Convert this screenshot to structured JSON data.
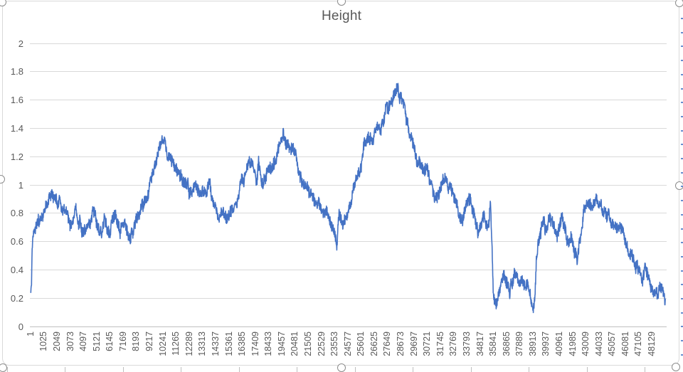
{
  "chart_data": {
    "type": "line",
    "title": "Height",
    "xlabel": "",
    "ylabel": "",
    "legend": "none",
    "grid": "horizontal",
    "ylim": [
      0,
      2
    ],
    "y_tick_step": 0.2,
    "y_tick_labels": [
      "2",
      "1.8",
      "1.6",
      "1.4",
      "1.2",
      "1",
      "0.8",
      "0.6",
      "0.4",
      "0.2",
      "0"
    ],
    "y_tick_values": [
      2,
      1.8,
      1.6,
      1.4,
      1.2,
      1,
      0.8,
      0.6,
      0.4,
      0.2,
      0
    ],
    "x_tick_labels": [
      "1",
      "1025",
      "2049",
      "3073",
      "4097",
      "5121",
      "6145",
      "7169",
      "8193",
      "9217",
      "10241",
      "11265",
      "12289",
      "13313",
      "14337",
      "15361",
      "16385",
      "17409",
      "18433",
      "19457",
      "20481",
      "21505",
      "22529",
      "23553",
      "24577",
      "25601",
      "26625",
      "27649",
      "28673",
      "29697",
      "30721",
      "31745",
      "32769",
      "33793",
      "34817",
      "35841",
      "36865",
      "37889",
      "38913",
      "39937",
      "40961",
      "41985",
      "43009",
      "44033",
      "45057",
      "46081",
      "47105",
      "48129"
    ],
    "x_range": [
      1,
      49152
    ],
    "colors": {
      "series": "#4472C4",
      "gridline": "#D9D9D9",
      "axis_line": "#BFBFBF",
      "tick_label": "#595959",
      "title": "#595959",
      "chart_border": "#D9D9D9",
      "handle_border": "#8C8C8C"
    },
    "series": [
      {
        "name": "Height",
        "color": "#4472C4",
        "noise_amplitude": 0.038,
        "noise_smooth": 0.02,
        "anchors": [
          [
            1,
            0.26
          ],
          [
            50,
            0.32
          ],
          [
            90,
            0.52
          ],
          [
            160,
            0.66
          ],
          [
            300,
            0.7
          ],
          [
            500,
            0.72
          ],
          [
            700,
            0.73
          ],
          [
            900,
            0.76
          ],
          [
            1150,
            0.82
          ],
          [
            1400,
            0.87
          ],
          [
            1650,
            0.91
          ],
          [
            1850,
            0.93
          ],
          [
            2050,
            0.89
          ],
          [
            2300,
            0.86
          ],
          [
            2550,
            0.83
          ],
          [
            2750,
            0.79
          ],
          [
            2950,
            0.73
          ],
          [
            3150,
            0.71
          ],
          [
            3350,
            0.77
          ],
          [
            3500,
            0.81
          ],
          [
            3650,
            0.73
          ],
          [
            3800,
            0.75
          ],
          [
            3950,
            0.7
          ],
          [
            4100,
            0.64
          ],
          [
            4250,
            0.68
          ],
          [
            4400,
            0.73
          ],
          [
            4600,
            0.7
          ],
          [
            4800,
            0.76
          ],
          [
            4950,
            0.8
          ],
          [
            5100,
            0.73
          ],
          [
            5300,
            0.7
          ],
          [
            5500,
            0.72
          ],
          [
            5700,
            0.75
          ],
          [
            5900,
            0.68
          ],
          [
            6100,
            0.7
          ],
          [
            6300,
            0.73
          ],
          [
            6500,
            0.78
          ],
          [
            6700,
            0.71
          ],
          [
            6900,
            0.67
          ],
          [
            7100,
            0.71
          ],
          [
            7300,
            0.74
          ],
          [
            7500,
            0.68
          ],
          [
            7700,
            0.63
          ],
          [
            7900,
            0.67
          ],
          [
            8100,
            0.72
          ],
          [
            8350,
            0.79
          ],
          [
            8600,
            0.86
          ],
          [
            8900,
            0.93
          ],
          [
            9200,
            1.0
          ],
          [
            9500,
            1.08
          ],
          [
            9800,
            1.17
          ],
          [
            10050,
            1.26
          ],
          [
            10250,
            1.31
          ],
          [
            10450,
            1.24
          ],
          [
            10650,
            1.19
          ],
          [
            10850,
            1.17
          ],
          [
            11050,
            1.13
          ],
          [
            11250,
            1.1
          ],
          [
            11450,
            1.07
          ],
          [
            11650,
            1.06
          ],
          [
            11850,
            1.03
          ],
          [
            12050,
            0.98
          ],
          [
            12250,
            0.93
          ],
          [
            12450,
            0.95
          ],
          [
            12650,
            0.97
          ],
          [
            12850,
            1.0
          ],
          [
            13050,
            0.96
          ],
          [
            13250,
            0.92
          ],
          [
            13450,
            0.9
          ],
          [
            13650,
            0.88
          ],
          [
            13830,
            1.03
          ],
          [
            14000,
            0.9
          ],
          [
            14200,
            0.85
          ],
          [
            14400,
            0.8
          ],
          [
            14600,
            0.77
          ],
          [
            14800,
            0.82
          ],
          [
            15000,
            0.79
          ],
          [
            15200,
            0.75
          ],
          [
            15450,
            0.81
          ],
          [
            15700,
            0.88
          ],
          [
            15950,
            0.93
          ],
          [
            16200,
            0.99
          ],
          [
            16450,
            1.05
          ],
          [
            16700,
            1.14
          ],
          [
            16900,
            1.23
          ],
          [
            17100,
            1.19
          ],
          [
            17300,
            1.1
          ],
          [
            17500,
            1.0
          ],
          [
            17650,
            1.17
          ],
          [
            17800,
            1.06
          ],
          [
            18000,
            1.03
          ],
          [
            18200,
            1.05
          ],
          [
            18400,
            1.07
          ],
          [
            18650,
            1.11
          ],
          [
            18900,
            1.16
          ],
          [
            19150,
            1.24
          ],
          [
            19400,
            1.32
          ],
          [
            19550,
            1.35
          ],
          [
            19750,
            1.3
          ],
          [
            19950,
            1.27
          ],
          [
            20150,
            1.26
          ],
          [
            20350,
            1.28
          ],
          [
            20550,
            1.26
          ],
          [
            20700,
            1.18
          ],
          [
            20850,
            1.1
          ],
          [
            21050,
            1.06
          ],
          [
            21250,
            1.02
          ],
          [
            21450,
            0.97
          ],
          [
            21650,
            0.94
          ],
          [
            21850,
            0.93
          ],
          [
            22050,
            0.91
          ],
          [
            22250,
            0.89
          ],
          [
            22450,
            0.87
          ],
          [
            22650,
            0.84
          ],
          [
            22850,
            0.8
          ],
          [
            23050,
            0.76
          ],
          [
            23250,
            0.72
          ],
          [
            23450,
            0.66
          ],
          [
            23720,
            0.56
          ],
          [
            23880,
            0.78
          ],
          [
            24080,
            0.72
          ],
          [
            24280,
            0.75
          ],
          [
            24480,
            0.78
          ],
          [
            24680,
            0.83
          ],
          [
            24880,
            0.9
          ],
          [
            25080,
            0.98
          ],
          [
            25280,
            1.05
          ],
          [
            25480,
            1.12
          ],
          [
            25680,
            1.2
          ],
          [
            25880,
            1.27
          ],
          [
            26080,
            1.32
          ],
          [
            26280,
            1.34
          ],
          [
            26480,
            1.33
          ],
          [
            26680,
            1.37
          ],
          [
            26880,
            1.41
          ],
          [
            27080,
            1.39
          ],
          [
            27280,
            1.44
          ],
          [
            27480,
            1.5
          ],
          [
            27680,
            1.54
          ],
          [
            27880,
            1.58
          ],
          [
            28080,
            1.64
          ],
          [
            28280,
            1.71
          ],
          [
            28380,
            1.72
          ],
          [
            28500,
            1.66
          ],
          [
            28700,
            1.61
          ],
          [
            28900,
            1.55
          ],
          [
            29100,
            1.45
          ],
          [
            29300,
            1.38
          ],
          [
            29500,
            1.32
          ],
          [
            29700,
            1.27
          ],
          [
            29900,
            1.16
          ],
          [
            30100,
            1.18
          ],
          [
            30300,
            1.12
          ],
          [
            30500,
            1.07
          ],
          [
            30700,
            1.1
          ],
          [
            30900,
            1.05
          ],
          [
            31100,
            0.98
          ],
          [
            31300,
            0.92
          ],
          [
            31500,
            0.89
          ],
          [
            31700,
            0.93
          ],
          [
            31900,
            0.99
          ],
          [
            32100,
            1.04
          ],
          [
            32300,
            0.98
          ],
          [
            32500,
            0.95
          ],
          [
            32700,
            0.93
          ],
          [
            32900,
            0.88
          ],
          [
            33100,
            0.84
          ],
          [
            33300,
            0.79
          ],
          [
            33500,
            0.76
          ],
          [
            33700,
            0.81
          ],
          [
            33900,
            0.87
          ],
          [
            34100,
            0.85
          ],
          [
            34300,
            0.78
          ],
          [
            34500,
            0.72
          ],
          [
            34700,
            0.68
          ],
          [
            34900,
            0.73
          ],
          [
            35100,
            0.75
          ],
          [
            35300,
            0.66
          ],
          [
            35500,
            0.7
          ],
          [
            35620,
            0.83
          ],
          [
            35730,
            0.55
          ],
          [
            35830,
            0.27
          ],
          [
            35950,
            0.22
          ],
          [
            36100,
            0.18
          ],
          [
            36300,
            0.26
          ],
          [
            36500,
            0.32
          ],
          [
            36700,
            0.35
          ],
          [
            36900,
            0.3
          ],
          [
            37100,
            0.22
          ],
          [
            37300,
            0.33
          ],
          [
            37500,
            0.4
          ],
          [
            37700,
            0.36
          ],
          [
            37900,
            0.28
          ],
          [
            38100,
            0.33
          ],
          [
            38300,
            0.28
          ],
          [
            38500,
            0.31
          ],
          [
            38700,
            0.24
          ],
          [
            38900,
            0.14
          ],
          [
            39050,
            0.2
          ],
          [
            39180,
            0.5
          ],
          [
            39350,
            0.57
          ],
          [
            39550,
            0.67
          ],
          [
            39750,
            0.73
          ],
          [
            39950,
            0.68
          ],
          [
            40150,
            0.75
          ],
          [
            40350,
            0.77
          ],
          [
            40550,
            0.7
          ],
          [
            40750,
            0.65
          ],
          [
            40950,
            0.7
          ],
          [
            41150,
            0.76
          ],
          [
            41350,
            0.7
          ],
          [
            41550,
            0.62
          ],
          [
            41750,
            0.57
          ],
          [
            41950,
            0.61
          ],
          [
            42150,
            0.53
          ],
          [
            42350,
            0.48
          ],
          [
            42550,
            0.63
          ],
          [
            42750,
            0.78
          ],
          [
            42950,
            0.85
          ],
          [
            43150,
            0.88
          ],
          [
            43350,
            0.9
          ],
          [
            43550,
            0.86
          ],
          [
            43750,
            0.87
          ],
          [
            43950,
            0.85
          ],
          [
            44150,
            0.87
          ],
          [
            44350,
            0.83
          ],
          [
            44550,
            0.79
          ],
          [
            44750,
            0.81
          ],
          [
            44950,
            0.77
          ],
          [
            45150,
            0.73
          ],
          [
            45350,
            0.76
          ],
          [
            45550,
            0.71
          ],
          [
            45750,
            0.67
          ],
          [
            45950,
            0.63
          ],
          [
            46150,
            0.58
          ],
          [
            46350,
            0.53
          ],
          [
            46550,
            0.49
          ],
          [
            46750,
            0.45
          ],
          [
            46950,
            0.41
          ],
          [
            47150,
            0.37
          ],
          [
            47350,
            0.34
          ],
          [
            47550,
            0.4
          ],
          [
            47750,
            0.38
          ],
          [
            47950,
            0.33
          ],
          [
            48150,
            0.27
          ],
          [
            48350,
            0.23
          ],
          [
            48550,
            0.21
          ],
          [
            48750,
            0.26
          ],
          [
            48950,
            0.22
          ],
          [
            49100,
            0.17
          ],
          [
            49152,
            0.16
          ]
        ]
      }
    ]
  }
}
